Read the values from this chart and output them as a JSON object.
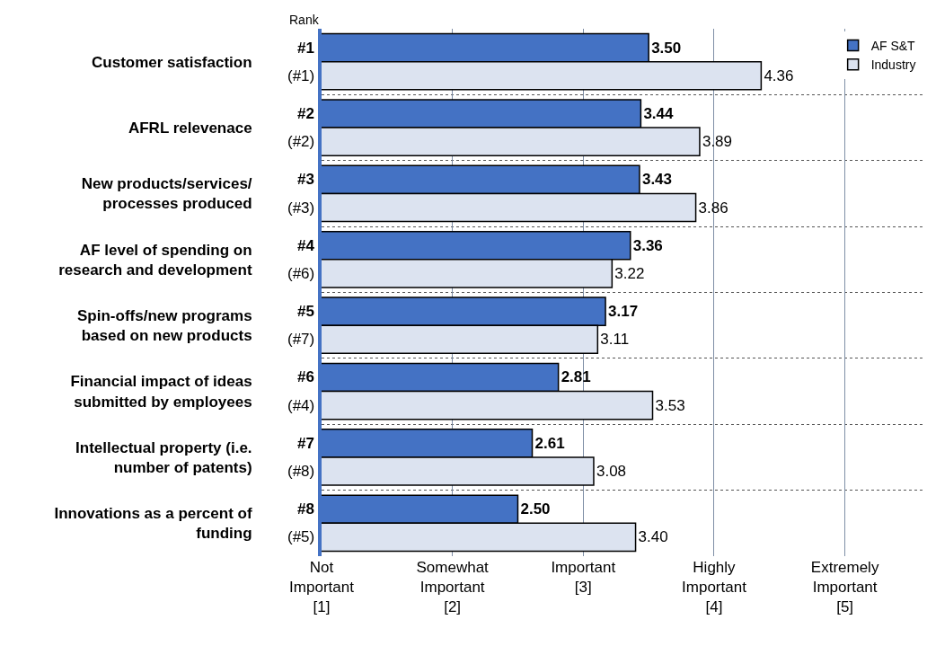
{
  "chart_data": {
    "type": "bar",
    "orientation": "horizontal",
    "categories": [
      "Customer satisfaction",
      "AFRL relevenace",
      "New products/services/\nprocesses produced",
      "AF level of spending on\nresearch and development",
      "Spin-offs/new programs\nbased on new products",
      "Financial impact of ideas\nsubmitted by employees",
      "Intellectual property (i.e.\nnumber of patents)",
      "Innovations as a percent of\nfunding"
    ],
    "series": [
      {
        "name": "AF S&T",
        "color": "#4472c4",
        "values": [
          3.5,
          3.44,
          3.43,
          3.36,
          3.17,
          2.81,
          2.61,
          2.5
        ],
        "value_labels": [
          "3.50",
          "3.44",
          "3.43",
          "3.36",
          "3.17",
          "2.81",
          "2.61",
          "2.50"
        ]
      },
      {
        "name": "Industry",
        "color": "#dce3f0",
        "values": [
          4.36,
          3.89,
          3.86,
          3.22,
          3.11,
          3.53,
          3.08,
          3.4
        ],
        "value_labels": [
          "4.36",
          "3.89",
          "3.86",
          "3.22",
          "3.11",
          "3.53",
          "3.08",
          "3.40"
        ]
      }
    ],
    "xlim": [
      1,
      5.6
    ],
    "xticks": [
      {
        "value": 1,
        "label": "Not\nImportant\n[1]"
      },
      {
        "value": 2,
        "label": "Somewhat\nImportant\n[2]"
      },
      {
        "value": 3,
        "label": "Important\n[3]"
      },
      {
        "value": 4,
        "label": "Highly\nImportant\n[4]"
      },
      {
        "value": 5,
        "label": "Extremely\nImportant\n[5]"
      }
    ],
    "grid": true,
    "legend": "top right",
    "annotations": [
      "Rank",
      {
        "text": "#1",
        "y": "Customer satisfaction"
      },
      {
        "text": "(#1)",
        "y": "Customer satisfaction"
      },
      {
        "text": "#2",
        "y": "AFRL relevenace"
      },
      {
        "text": "(#2)",
        "y": "AFRL relevenace"
      },
      {
        "text": "#3",
        "y": "New products/services/\nprocesses produced"
      },
      {
        "text": "(#3)",
        "y": "New products/services/\nprocesses produced"
      },
      {
        "text": "#4",
        "y": "AF level of spending on\nresearch and development"
      },
      {
        "text": "(#6)",
        "y": "AF level of spending on\nresearch and development"
      },
      {
        "text": "#5",
        "y": "Spin-offs/new programs\nbased on new products"
      },
      {
        "text": "(#7)",
        "y": "Spin-offs/new programs\nbased on new products"
      },
      {
        "text": "#6",
        "y": "Financial impact of ideas\nsubmitted by employees"
      },
      {
        "text": "(#4)",
        "y": "Financial impact of ideas\nsubmitted by employees"
      },
      {
        "text": "#7",
        "y": "Intellectual property (i.e.\nnumber of patents)"
      },
      {
        "text": "(#8)",
        "y": "Intellectual property (i.e.\nnumber of patents)"
      },
      {
        "text": "#8",
        "y": "Innovations as a percent of\nfunding"
      },
      {
        "text": "(#5)",
        "y": "Innovations as a percent of\nfunding"
      }
    ]
  }
}
